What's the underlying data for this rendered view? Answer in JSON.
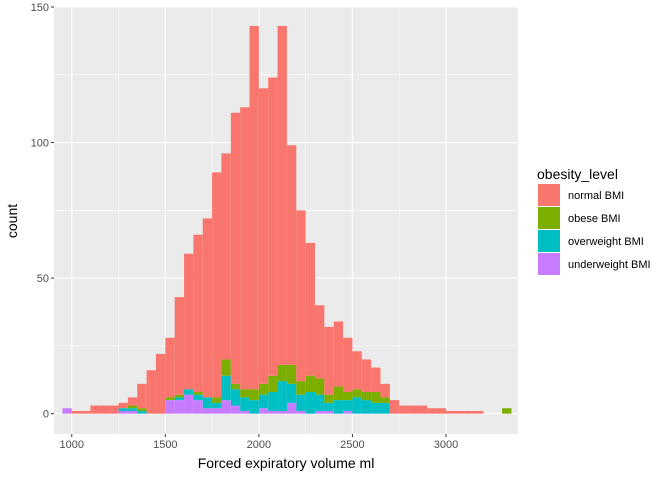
{
  "chart_data": {
    "type": "bar",
    "stacked": true,
    "xlabel": "Forced expiratory volume ml",
    "ylabel": "count",
    "xlim": [
      905,
      3385
    ],
    "ylim": [
      -7.5,
      150
    ],
    "x_ticks": [
      1000,
      1500,
      2000,
      2500,
      3000
    ],
    "y_ticks": [
      0,
      50,
      100,
      150
    ],
    "bin_width": 50,
    "bin_starts": [
      950,
      1000,
      1050,
      1100,
      1150,
      1200,
      1250,
      1300,
      1350,
      1400,
      1450,
      1500,
      1550,
      1600,
      1650,
      1700,
      1750,
      1800,
      1850,
      1900,
      1950,
      2000,
      2050,
      2100,
      2150,
      2200,
      2250,
      2300,
      2350,
      2400,
      2450,
      2500,
      2550,
      2600,
      2650,
      2700,
      2750,
      2800,
      2850,
      2900,
      2950,
      3000,
      3050,
      3100,
      3150,
      3200,
      3250,
      3300
    ],
    "legend_title": "obesity_level",
    "legend_position": "right",
    "grid": true,
    "series": [
      {
        "name": "underweight BMI",
        "color": "#C77CFF",
        "values": [
          2,
          0,
          0,
          0,
          0,
          0,
          1,
          1,
          0,
          0,
          0,
          5,
          5,
          7,
          5,
          2,
          2,
          5,
          3,
          1,
          0,
          2,
          1,
          1,
          4,
          1,
          0,
          1,
          1,
          0,
          1,
          0,
          0,
          0,
          0,
          0,
          0,
          0,
          0,
          0,
          0,
          0,
          0,
          0,
          0,
          0,
          0,
          0
        ]
      },
      {
        "name": "overweight BMI",
        "color": "#00BFC4",
        "values": [
          0,
          0,
          0,
          0,
          0,
          0,
          1,
          1,
          1,
          0,
          0,
          0,
          1,
          2,
          2,
          4,
          2,
          9,
          6,
          5,
          5,
          5,
          7,
          11,
          7,
          6,
          8,
          6,
          3,
          5,
          4,
          6,
          5,
          4,
          4,
          0,
          0,
          0,
          0,
          0,
          0,
          0,
          0,
          0,
          0,
          0,
          0,
          0
        ]
      },
      {
        "name": "obese BMI",
        "color": "#7CAE00",
        "values": [
          0,
          0,
          0,
          0,
          0,
          0,
          0,
          1,
          1,
          0,
          0,
          1,
          1,
          0,
          1,
          0,
          2,
          6,
          2,
          3,
          4,
          4,
          6,
          6,
          7,
          5,
          6,
          6,
          3,
          5,
          3,
          3,
          3,
          4,
          2,
          0,
          0,
          0,
          0,
          0,
          0,
          0,
          0,
          0,
          0,
          0,
          0,
          2
        ]
      },
      {
        "name": "normal BMI",
        "color": "#F8766D",
        "values": [
          0,
          1,
          1,
          3,
          3,
          3,
          2,
          3,
          9,
          16,
          22,
          22,
          36,
          50,
          58,
          66,
          83,
          76,
          100,
          104,
          134,
          109,
          110,
          125,
          81,
          63,
          49,
          27,
          25,
          24,
          20,
          14,
          12,
          9,
          5,
          5,
          3,
          3,
          3,
          2,
          2,
          1,
          1,
          1,
          1,
          0,
          0,
          0
        ]
      }
    ],
    "legend_order": [
      "normal BMI",
      "obese BMI",
      "overweight BMI",
      "underweight BMI"
    ]
  }
}
